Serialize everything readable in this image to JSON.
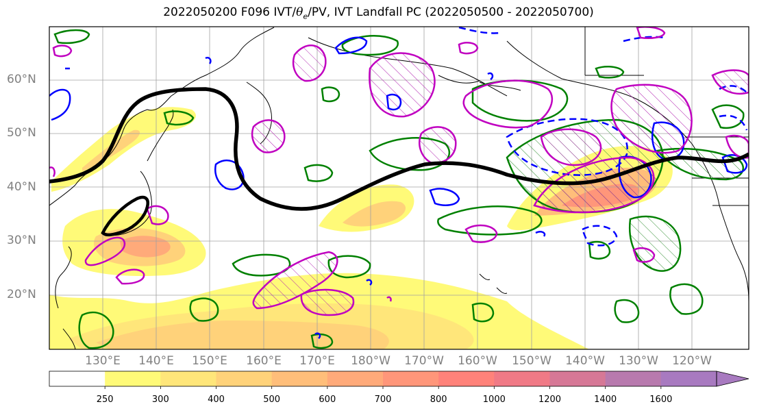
{
  "title": {
    "prefix": "2022050200 F096 IVT/",
    "theta_symbol": "θ",
    "theta_sub": "e",
    "suffix": "/PV, IVT Landfall PC (2022050500 - 2022050700)"
  },
  "axes": {
    "lat_labels": [
      "60°N",
      "50°N",
      "40°N",
      "30°N",
      "20°N"
    ],
    "lon_labels": [
      "130°E",
      "140°E",
      "150°E",
      "160°E",
      "170°E",
      "180°W",
      "170°W",
      "160°W",
      "150°W",
      "140°W",
      "130°W",
      "120°W"
    ]
  },
  "colorbar": {
    "levels": [
      "250",
      "300",
      "400",
      "500",
      "600",
      "700",
      "800",
      "1000",
      "1200",
      "1400",
      "1600"
    ],
    "colors": [
      "#ffffff",
      "#fffa78",
      "#ffe67a",
      "#ffd27a",
      "#ffbe7a",
      "#ffaa7a",
      "#ff967a",
      "#ff827a",
      "#f07a86",
      "#d67896",
      "#b87aae",
      "#a87ac0"
    ],
    "extend": "max"
  },
  "map": {
    "projection": "Plate Carree",
    "lon_range": [
      "120°E",
      "112°W"
    ],
    "lat_range": [
      "10°N",
      "70°N"
    ],
    "gridlines": true,
    "contour_colors": {
      "ivt_zero_line": "#000000",
      "green_contours": "#008000",
      "blue_contours": "#0000ff",
      "magenta_contours": "#c000c0"
    }
  }
}
